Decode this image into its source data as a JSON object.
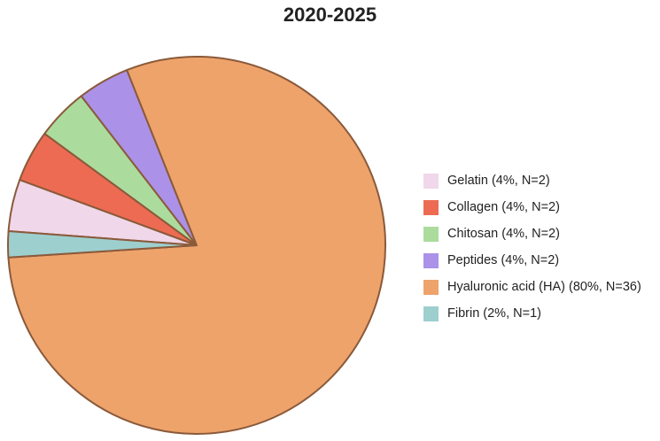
{
  "chart_data": {
    "type": "pie",
    "title": "2020-2025",
    "slices": [
      {
        "name": "Gelatin",
        "label": "Gelatin (4%, N=2)",
        "value": 2,
        "percent": 4,
        "color": "#f0d7e9"
      },
      {
        "name": "Collagen",
        "label": "Collagen (4%, N=2)",
        "value": 2,
        "percent": 4,
        "color": "#ed6b53"
      },
      {
        "name": "Chitosan",
        "label": "Chitosan (4%, N=2)",
        "value": 2,
        "percent": 4,
        "color": "#acdb9e"
      },
      {
        "name": "Peptides",
        "label": "Peptides (4%, N=2)",
        "value": 2,
        "percent": 4,
        "color": "#ab91e8"
      },
      {
        "name": "Hyaluronic acid (HA)",
        "label": "Hyaluronic acid (HA) (80%, N=36)",
        "value": 36,
        "percent": 80,
        "color": "#eea36b"
      },
      {
        "name": "Fibrin",
        "label": "Fibrin (2%, N=1)",
        "value": 1,
        "percent": 2,
        "color": "#9ecfcf"
      }
    ],
    "legend_position": "right",
    "slice_outline_color": "#8a5a3a"
  }
}
